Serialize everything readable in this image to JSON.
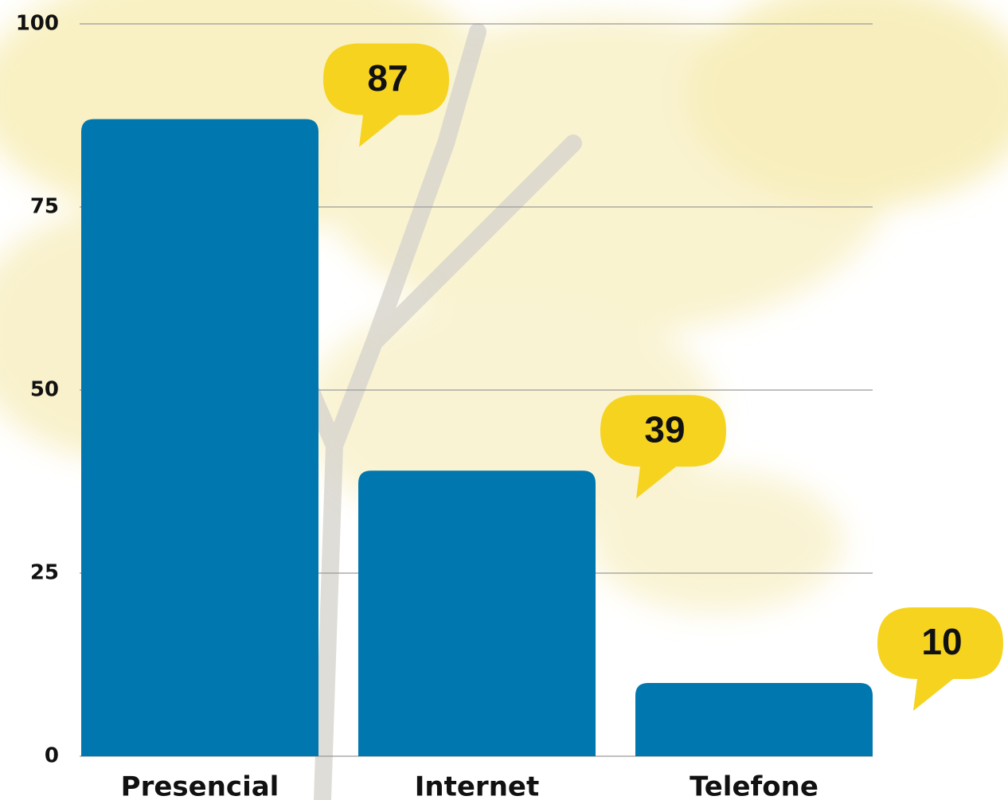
{
  "chart_data": {
    "type": "bar",
    "categories": [
      "Presencial",
      "Internet",
      "Telefone"
    ],
    "values": [
      87,
      39,
      10
    ],
    "color": "#0077ae",
    "label_color": "#f5d31f",
    "ylim": [
      0,
      100
    ],
    "yticks": [
      0,
      25,
      50,
      75,
      100
    ],
    "grid": true
  }
}
